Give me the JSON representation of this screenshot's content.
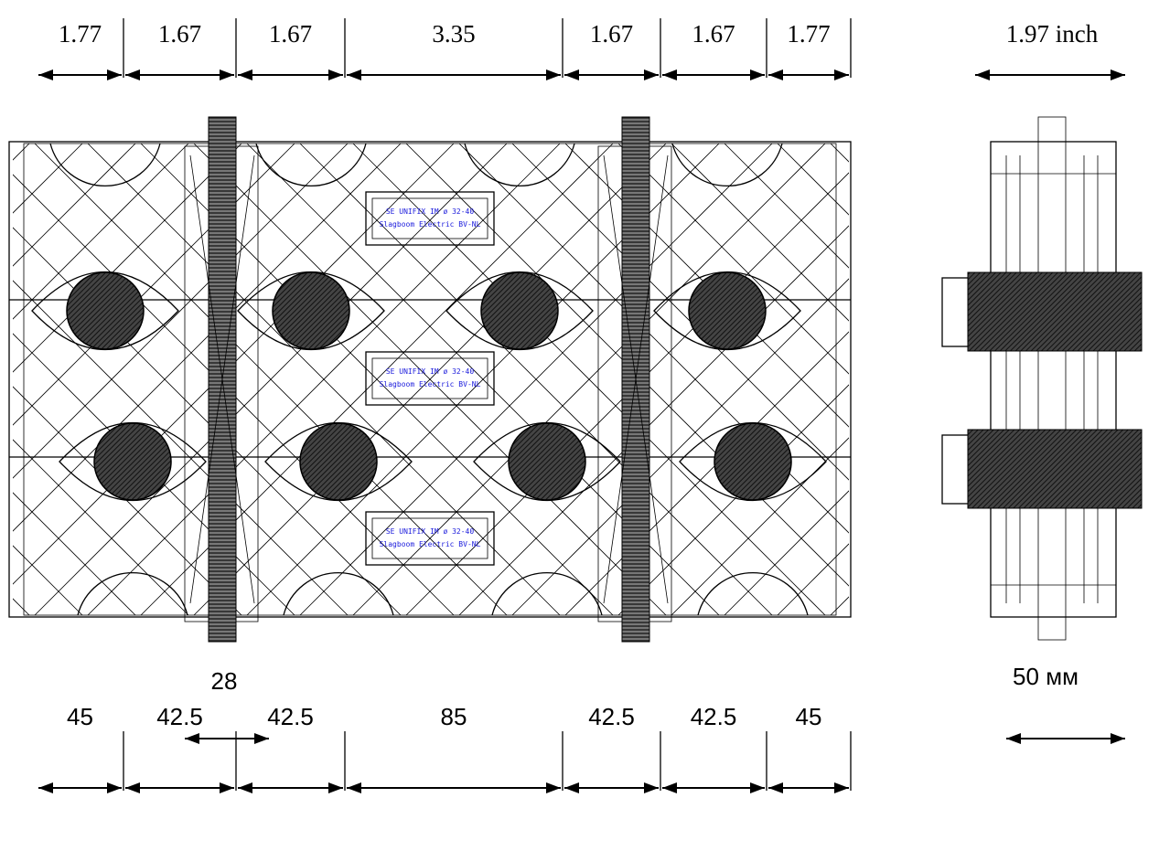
{
  "top_dimensions": [
    "1.77",
    "1.67",
    "1.67",
    "3.35",
    "1.67",
    "1.67",
    "1.77"
  ],
  "side_top_dimension": "1.97 inch",
  "labels": [
    {
      "line1": "SE  UNIFIX IM ø 32-40",
      "line2": "Slagboom Electric BV-NL"
    },
    {
      "line1": "SE  UNIFIX IM ø 32-40",
      "line2": "Slagboom Electric BV-NL"
    },
    {
      "line1": "SE  UNIFIX IM ø 32-40",
      "line2": "Slagboom Electric BV-NL"
    }
  ],
  "strap_width": "28",
  "side_bottom_dimension": "50 мм",
  "bottom_dimensions": [
    "45",
    "42.5",
    "42.5",
    "85",
    "42.5",
    "42.5",
    "45"
  ]
}
